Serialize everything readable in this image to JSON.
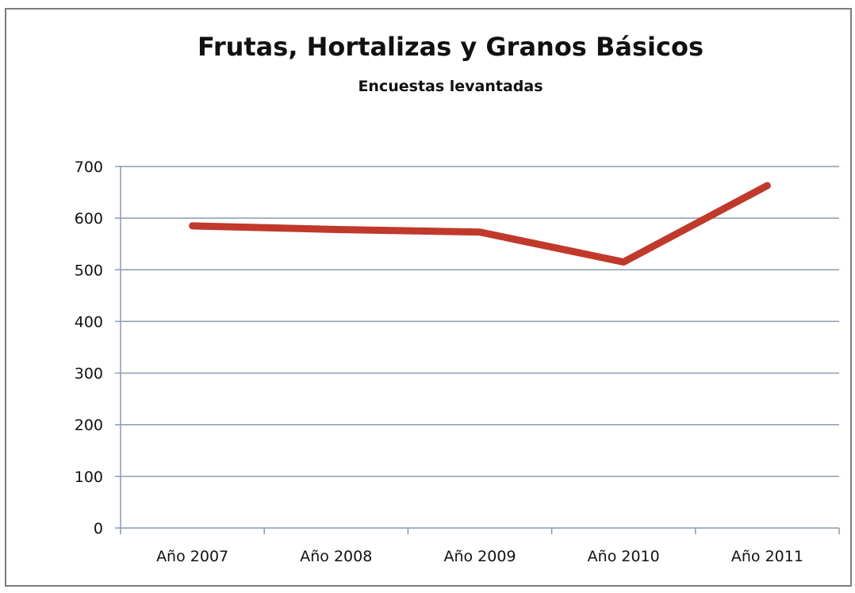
{
  "chart_data": {
    "type": "line",
    "title": "Frutas, Hortalizas y Granos Básicos",
    "subtitle": "Encuestas levantadas",
    "xlabel": "",
    "ylabel": "",
    "categories": [
      "Año 2007",
      "Año 2008",
      "Año 2009",
      "Año 2010",
      "Año 2011"
    ],
    "series": [
      {
        "values": [
          585,
          578,
          573,
          515,
          663
        ],
        "color": "#c0392b"
      }
    ],
    "ylim": [
      0,
      700
    ],
    "yticks": [
      0,
      100,
      200,
      300,
      400,
      500,
      600,
      700
    ],
    "grid": true,
    "legend": "none"
  }
}
